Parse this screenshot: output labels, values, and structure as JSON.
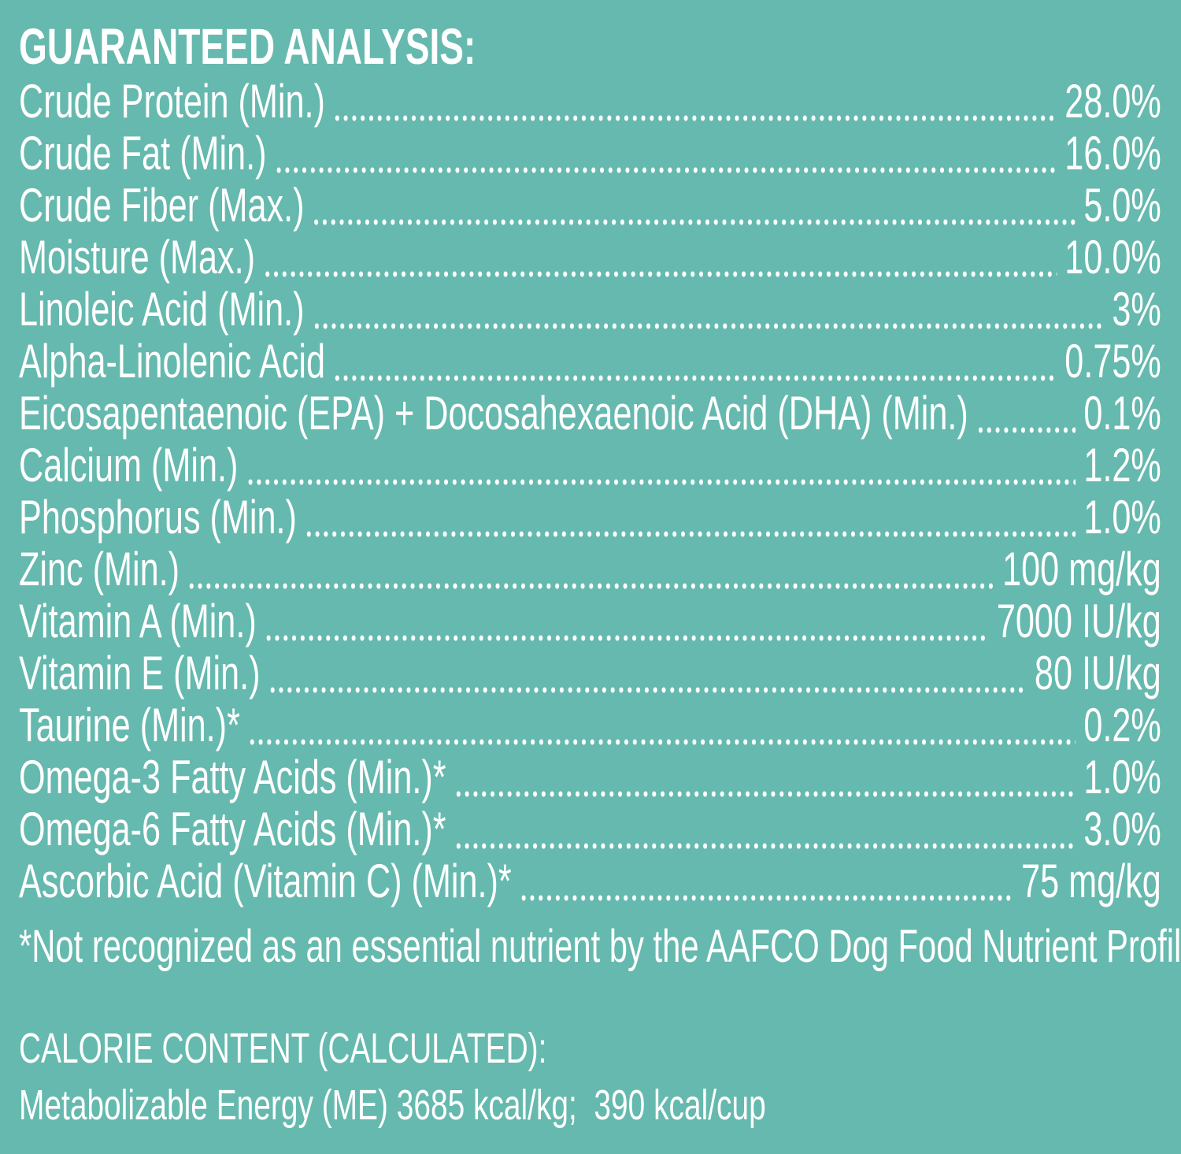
{
  "header": {
    "title": "GUARANTEED ANALYSIS:"
  },
  "rows": [
    {
      "label": "Crude Protein (Min.)",
      "value": "28.0%"
    },
    {
      "label": "Crude Fat (Min.)",
      "value": "16.0%"
    },
    {
      "label": "Crude Fiber (Max.)",
      "value": "5.0%"
    },
    {
      "label": "Moisture (Max.)",
      "value": "10.0%"
    },
    {
      "label": "Linoleic Acid (Min.)",
      "value": "3%"
    },
    {
      "label": "Alpha-Linolenic Acid",
      "value": "0.75%"
    },
    {
      "label": "Eicosapentaenoic (EPA) + Docosahexaenoic Acid (DHA) (Min.)",
      "value": "0.1%"
    },
    {
      "label": "Calcium (Min.)",
      "value": "1.2%"
    },
    {
      "label": "Phosphorus (Min.)",
      "value": "1.0%"
    },
    {
      "label": "Zinc (Min.)",
      "value": "100 mg/kg"
    },
    {
      "label": "Vitamin A (Min.)",
      "value": "7000 IU/kg"
    },
    {
      "label": "Vitamin E (Min.)",
      "value": "80 IU/kg"
    },
    {
      "label": "Taurine (Min.)*",
      "value": "0.2%"
    },
    {
      "label": "Omega-3 Fatty Acids (Min.)*",
      "value": "1.0%"
    },
    {
      "label": "Omega-6 Fatty Acids (Min.)*",
      "value": "3.0%"
    },
    {
      "label": "Ascorbic Acid (Vitamin C) (Min.)*",
      "value": "75 mg/kg"
    }
  ],
  "footnote": "*Not recognized as an essential nutrient by the AAFCO Dog Food Nutrient Profiles.",
  "calorie": {
    "title": "CALORIE CONTENT (CALCULATED):",
    "text": "Metabolizable Energy (ME) 3685 kcal/kg;  390 kcal/cup"
  }
}
